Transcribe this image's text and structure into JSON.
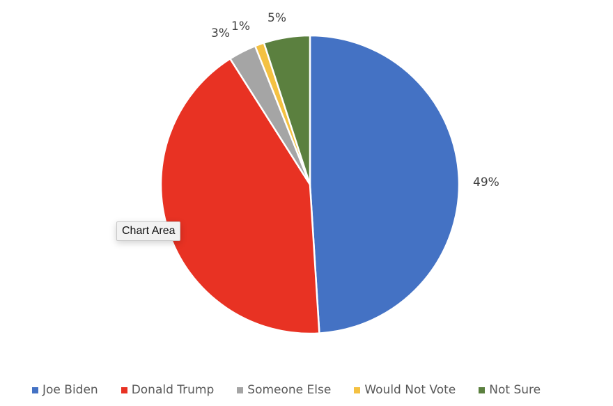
{
  "chart_data": {
    "type": "pie",
    "title": "",
    "categories": [
      "Joe Biden",
      "Donald Trump",
      "Someone Else",
      "Would Not Vote",
      "Not Sure"
    ],
    "values": [
      49,
      42,
      3,
      1,
      5
    ],
    "colors": [
      "#4472c4",
      "#e83223",
      "#a5a5a5",
      "#f4c142",
      "#5b803f"
    ],
    "data_labels": [
      "49%",
      "",
      "3%",
      "1%",
      "5%"
    ],
    "start_angle_deg": 0,
    "direction": "clockwise",
    "legend_position": "bottom"
  },
  "labels": {
    "biden": "49%",
    "someone_else": "3%",
    "would_not_vote": "1%",
    "not_sure": "5%"
  },
  "legend": [
    {
      "label": "Joe Biden",
      "color": "#4472c4"
    },
    {
      "label": "Donald Trump",
      "color": "#e83223"
    },
    {
      "label": "Someone Else",
      "color": "#a5a5a5"
    },
    {
      "label": "Would Not Vote",
      "color": "#f4c142"
    },
    {
      "label": "Not Sure",
      "color": "#5b803f"
    }
  ],
  "tooltip": {
    "text": "Chart Area"
  }
}
